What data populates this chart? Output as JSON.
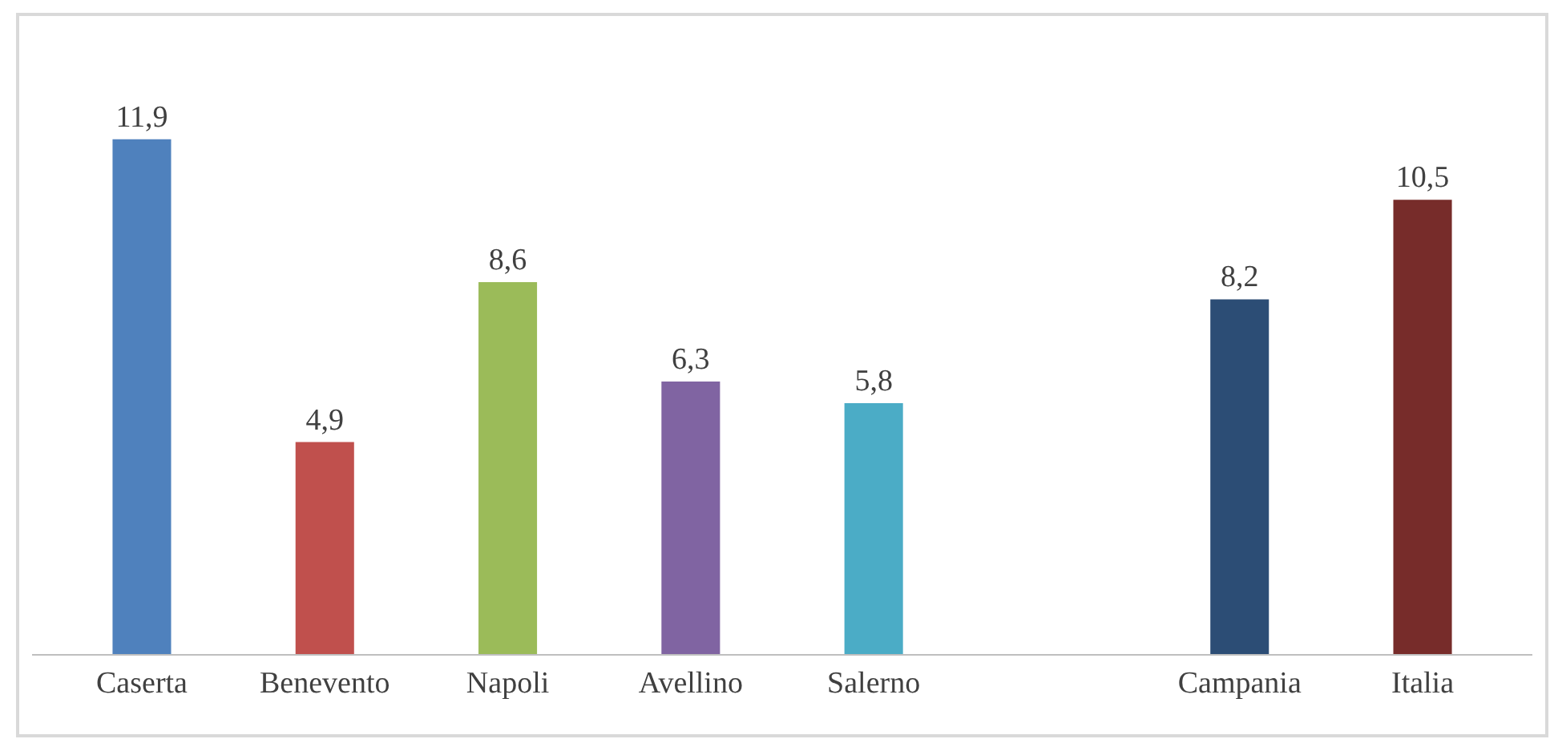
{
  "chart_data": {
    "type": "bar",
    "categories": [
      "Caserta",
      "Benevento",
      "Napoli",
      "Avellino",
      "Salerno",
      null,
      "Campania",
      "Italia"
    ],
    "values": [
      11.9,
      4.9,
      8.6,
      6.3,
      5.8,
      null,
      8.2,
      10.5
    ],
    "colors": [
      "#4f81bd",
      "#c0504d",
      "#9bbb59",
      "#8064a2",
      "#4bacc6",
      null,
      "#2c4d75",
      "#772c2a"
    ],
    "value_labels": [
      "11,9",
      "4,9",
      "8,6",
      "6,3",
      "5,8",
      null,
      "8,2",
      "10,5"
    ],
    "legend": false
  }
}
